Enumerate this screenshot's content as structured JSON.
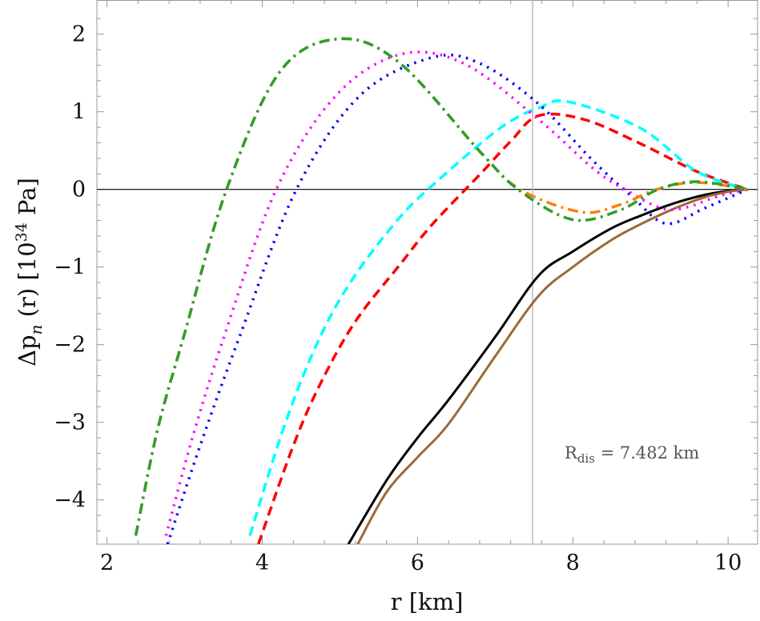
{
  "chart_data": {
    "type": "line",
    "title": "",
    "xlabel": "r [km]",
    "ylabel": {
      "prefix": "Δp",
      "sub": "n",
      "mid": " (r) [10",
      "sup": "34",
      "suffix": " Pa]"
    },
    "xlim": [
      1.87,
      10.38
    ],
    "ylim": [
      -4.57,
      2.44
    ],
    "xticks": [
      2,
      4,
      6,
      8,
      10
    ],
    "yticks": [
      -4,
      -3,
      -2,
      -1,
      0,
      1,
      2
    ],
    "ytick_labels": [
      "−4",
      "−3",
      "−2",
      "−1",
      "0",
      "1",
      "2"
    ],
    "grid": false,
    "reference_lines": {
      "y": 0,
      "x": 7.482
    },
    "annotation": {
      "main": "R",
      "sub": "dis",
      "rest": " = 7.482 km"
    },
    "series": [
      {
        "color": "#000000",
        "style": "solid",
        "x": [
          5.11,
          5.6,
          6.0,
          6.4,
          7.0,
          7.56,
          8.0,
          8.5,
          8.87,
          9.3,
          9.7,
          10.0,
          10.25
        ],
        "y": [
          -4.57,
          -3.75,
          -3.2,
          -2.71,
          -1.9,
          -1.11,
          -0.8,
          -0.5,
          -0.34,
          -0.18,
          -0.07,
          -0.02,
          0
        ]
      },
      {
        "color": "#9c6a36",
        "style": "solid",
        "x": [
          5.23,
          5.6,
          6.0,
          6.4,
          7.0,
          7.56,
          8.0,
          8.5,
          8.87,
          9.3,
          9.7,
          10.0,
          10.25
        ],
        "y": [
          -4.57,
          -3.9,
          -3.45,
          -3.02,
          -2.15,
          -1.37,
          -1.0,
          -0.65,
          -0.45,
          -0.25,
          -0.1,
          -0.03,
          0
        ]
      },
      {
        "color": "#ff0000",
        "style": "dashed",
        "x": [
          3.95,
          4.4,
          4.75,
          5.2,
          5.78,
          6.19,
          6.81,
          7.2,
          7.56,
          8.15,
          8.87,
          9.6,
          10.25
        ],
        "y": [
          -4.57,
          -3.3,
          -2.5,
          -1.7,
          -0.96,
          -0.45,
          0.2,
          0.62,
          0.95,
          0.9,
          0.59,
          0.23,
          0
        ]
      },
      {
        "color": "#00ffff",
        "style": "dashed",
        "x": [
          3.84,
          4.3,
          4.75,
          5.2,
          5.78,
          6.19,
          6.81,
          7.2,
          7.56,
          7.94,
          8.87,
          9.6,
          10.25
        ],
        "y": [
          -4.46,
          -3.0,
          -1.89,
          -1.1,
          -0.35,
          0.05,
          0.59,
          0.88,
          1.05,
          1.13,
          0.79,
          0.23,
          0
        ]
      },
      {
        "color": "#0000ff",
        "style": "dotted",
        "x": [
          2.78,
          3.2,
          3.71,
          4.44,
          5.26,
          6.19,
          6.81,
          7.56,
          8.25,
          8.77,
          9.2,
          9.7,
          10.25
        ],
        "y": [
          -4.57,
          -3.3,
          -1.89,
          0,
          1.21,
          1.7,
          1.62,
          1.1,
          0.38,
          -0.1,
          -0.44,
          -0.24,
          0
        ]
      },
      {
        "color": "#ff00ff",
        "style": "dotted",
        "x": [
          2.76,
          3.1,
          3.51,
          4.18,
          4.95,
          5.78,
          6.6,
          7.56,
          8.25,
          8.67,
          9.25,
          9.9,
          10.25
        ],
        "y": [
          -4.46,
          -3.2,
          -1.89,
          0,
          1.21,
          1.74,
          1.62,
          0.9,
          0.28,
          0,
          -0.26,
          -0.08,
          0
        ]
      },
      {
        "color": "#ff7f0e",
        "style": "dashdot",
        "x": [
          2.37,
          2.65,
          2.99,
          3.54,
          4.23,
          5.0,
          5.78,
          6.81,
          7.32,
          8.1,
          8.6,
          9.08,
          9.6,
          10.25
        ],
        "y": [
          -4.46,
          -3.1,
          -1.89,
          0,
          1.52,
          1.94,
          1.62,
          0.48,
          0,
          -0.29,
          -0.2,
          0,
          0.09,
          0
        ]
      },
      {
        "color": "#2ca02c",
        "style": "dashdot",
        "x": [
          2.37,
          2.65,
          2.99,
          3.54,
          4.23,
          5.0,
          5.78,
          6.81,
          7.32,
          8.0,
          8.6,
          9.1,
          9.6,
          10.25
        ],
        "y": [
          -4.46,
          -3.1,
          -1.89,
          0,
          1.52,
          1.94,
          1.62,
          0.48,
          -0.02,
          -0.39,
          -0.27,
          0,
          0.1,
          0
        ]
      }
    ]
  }
}
